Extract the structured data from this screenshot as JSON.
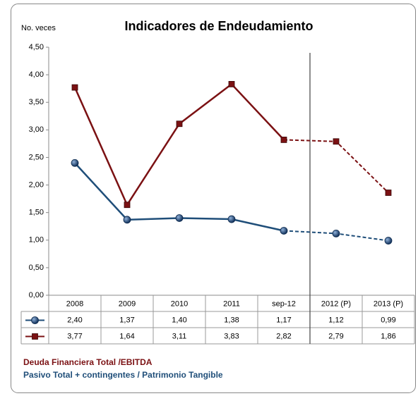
{
  "chart_data": {
    "type": "line",
    "title": "Indicadores de Endeudamiento",
    "y_label": "No. veces",
    "categories": [
      "2008",
      "2009",
      "2010",
      "2011",
      "sep-12",
      "2012 (P)",
      "2013 (P)"
    ],
    "dashed_from_index": 4,
    "series": [
      {
        "name": "Pasivo Total + contingentes / Patrimonio Tangible",
        "color": "#1f4e79",
        "marker": "circle",
        "values": [
          2.4,
          1.37,
          1.4,
          1.38,
          1.17,
          1.12,
          0.99
        ],
        "value_labels": [
          "2,40",
          "1,37",
          "1,40",
          "1,38",
          "1,17",
          "1,12",
          "0,99"
        ]
      },
      {
        "name": "Deuda Financiera Total /EBITDA",
        "color": "#7b1113",
        "marker": "square",
        "values": [
          3.77,
          1.64,
          3.11,
          3.83,
          2.82,
          2.79,
          1.86
        ],
        "value_labels": [
          "3,77",
          "1,64",
          "3,11",
          "3,83",
          "2,82",
          "2,79",
          "1,86"
        ]
      }
    ],
    "ylim": [
      0,
      4.5
    ],
    "yticks": [
      {
        "value": 0,
        "label": "0,00"
      },
      {
        "value": 0.5,
        "label": "0,50"
      },
      {
        "value": 1,
        "label": "1,00"
      },
      {
        "value": 1.5,
        "label": "1,50"
      },
      {
        "value": 2,
        "label": "2,00"
      },
      {
        "value": 2.5,
        "label": "2,50"
      },
      {
        "value": 3,
        "label": "3,00"
      },
      {
        "value": 3.5,
        "label": "3,50"
      },
      {
        "value": 4,
        "label": "4,00"
      },
      {
        "value": 4.5,
        "label": "4,50"
      }
    ],
    "grid": false
  }
}
